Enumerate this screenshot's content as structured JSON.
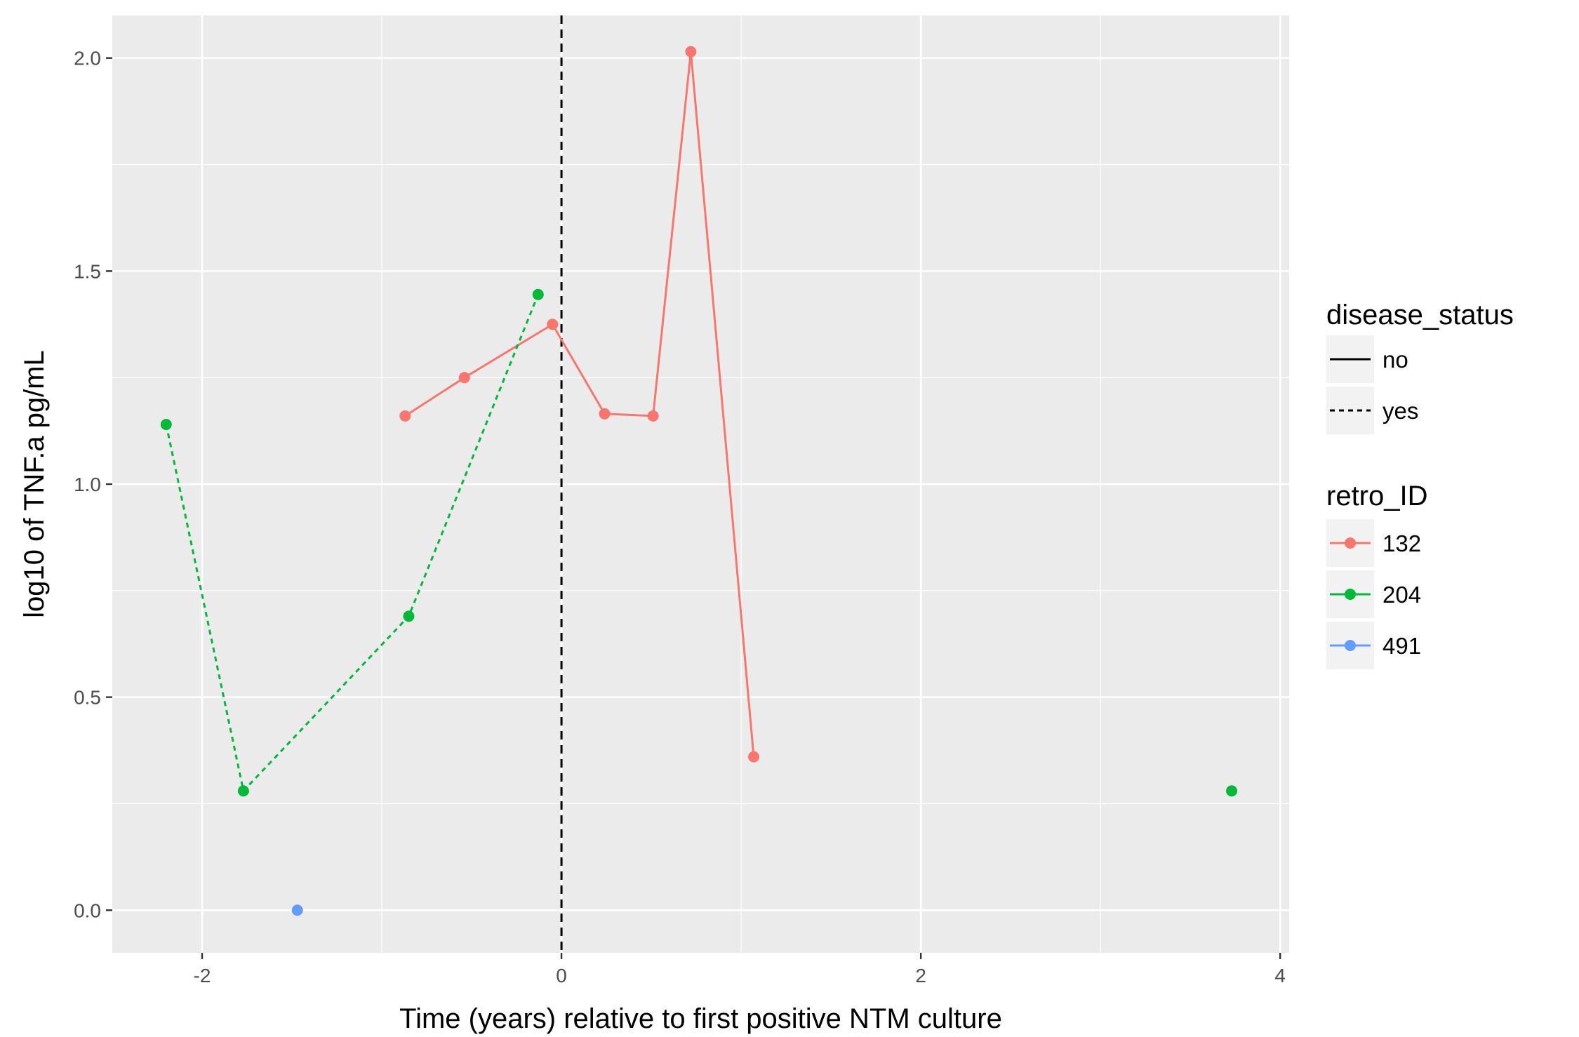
{
  "chart_data": {
    "type": "line",
    "title": "",
    "xlabel": "Time (years) relative to first positive NTM culture",
    "ylabel": "log10 of TNF.a pg/mL",
    "xlim": [
      -2.5,
      4.05
    ],
    "ylim": [
      -0.1,
      2.1
    ],
    "x_ticks": [
      -2,
      0,
      2,
      4
    ],
    "x_tick_labels": [
      "-2",
      "0",
      "2",
      "4"
    ],
    "y_ticks": [
      0.0,
      0.5,
      1.0,
      1.5,
      2.0
    ],
    "y_tick_labels": [
      "0.0",
      "0.5",
      "1.0",
      "1.5",
      "2.0"
    ],
    "grid": true,
    "background": "#ebebeb",
    "reference_line": {
      "x": 0,
      "style": "dashed",
      "color": "#000000"
    },
    "series": [
      {
        "name": "132",
        "color": "#f8766d",
        "disease_status": "no",
        "connected": true,
        "x": [
          -0.87,
          -0.54,
          -0.05,
          0.24,
          0.51,
          0.72,
          1.07
        ],
        "y": [
          1.16,
          1.25,
          1.375,
          1.165,
          1.16,
          2.015,
          0.36
        ]
      },
      {
        "name": "204",
        "color": "#00ba38",
        "disease_status": "yes",
        "connected": true,
        "x": [
          -2.2,
          -1.77,
          -0.85,
          -0.13
        ],
        "y": [
          1.14,
          0.28,
          0.69,
          1.445
        ]
      },
      {
        "name": "204",
        "color": "#00ba38",
        "disease_status": "no",
        "connected": false,
        "x": [
          3.73
        ],
        "y": [
          0.28
        ]
      },
      {
        "name": "491",
        "color": "#619cff",
        "disease_status": "no",
        "connected": false,
        "x": [
          -1.47
        ],
        "y": [
          0.0
        ]
      }
    ],
    "legend": {
      "placement": "right",
      "groups": [
        {
          "title": "disease_status",
          "entries": [
            {
              "label": "no",
              "linetype": "solid"
            },
            {
              "label": "yes",
              "linetype": "dashed"
            }
          ]
        },
        {
          "title": "retro_ID",
          "entries": [
            {
              "label": "132",
              "color": "#f8766d"
            },
            {
              "label": "204",
              "color": "#00ba38"
            },
            {
              "label": "491",
              "color": "#619cff"
            }
          ]
        }
      ]
    }
  }
}
